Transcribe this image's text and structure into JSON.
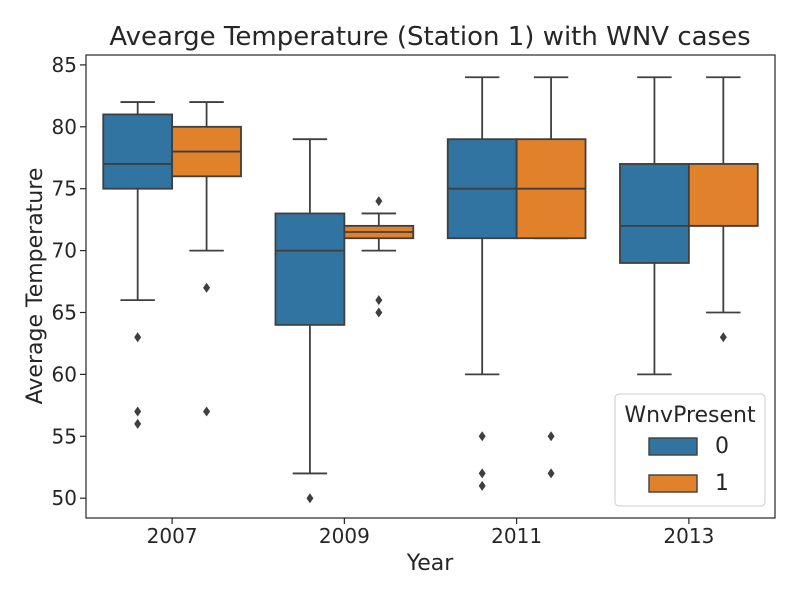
{
  "chart_data": {
    "type": "box",
    "title": "Avearge Temperature (Station 1) with WNV cases",
    "xlabel": "Year",
    "ylabel": "Average Temperature",
    "categories": [
      "2007",
      "2009",
      "2011",
      "2013"
    ],
    "ylim": [
      48.4,
      85.8
    ],
    "yticks": [
      50,
      55,
      60,
      65,
      70,
      75,
      80,
      85
    ],
    "grid": false,
    "legend": {
      "title": "WnvPresent",
      "placement": "lower-right"
    },
    "series": [
      {
        "name": "0",
        "color": "#3274a1",
        "boxes": [
          {
            "category": "2007",
            "whisker_low": 66,
            "q1": 75,
            "median": 77,
            "q3": 81,
            "whisker_high": 82,
            "outliers": [
              63,
              57,
              56
            ]
          },
          {
            "category": "2009",
            "whisker_low": 52,
            "q1": 64,
            "median": 70,
            "q3": 73,
            "whisker_high": 79,
            "outliers": [
              50
            ]
          },
          {
            "category": "2011",
            "whisker_low": 60,
            "q1": 71,
            "median": 75,
            "q3": 79,
            "whisker_high": 84,
            "outliers": [
              55,
              52,
              51
            ]
          },
          {
            "category": "2013",
            "whisker_low": 60,
            "q1": 69,
            "median": 72,
            "q3": 77,
            "whisker_high": 84,
            "outliers": []
          }
        ]
      },
      {
        "name": "1",
        "color": "#e1812c",
        "boxes": [
          {
            "category": "2007",
            "whisker_low": 70,
            "q1": 76,
            "median": 78,
            "q3": 80,
            "whisker_high": 82,
            "outliers": [
              67,
              57
            ]
          },
          {
            "category": "2009",
            "whisker_low": 70,
            "q1": 71,
            "median": 71.5,
            "q3": 72,
            "whisker_high": 73,
            "outliers": [
              74,
              66,
              65
            ]
          },
          {
            "category": "2011",
            "whisker_low": 71,
            "q1": 71,
            "median": 75,
            "q3": 79,
            "whisker_high": 84,
            "outliers": [
              55,
              52
            ]
          },
          {
            "category": "2013",
            "whisker_low": 65,
            "q1": 72,
            "median": 72,
            "q3": 77,
            "whisker_high": 84,
            "outliers": [
              63
            ]
          }
        ]
      }
    ]
  }
}
